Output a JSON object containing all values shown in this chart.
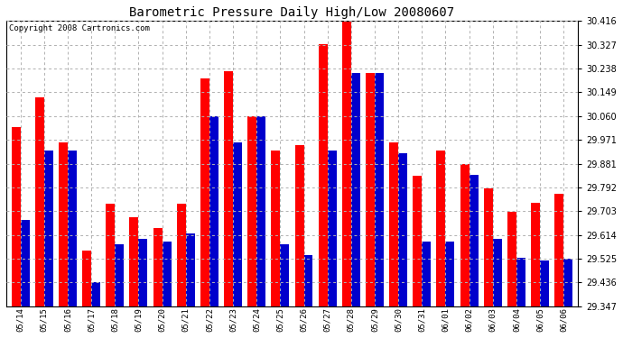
{
  "title": "Barometric Pressure Daily High/Low 20080607",
  "copyright": "Copyright 2008 Cartronics.com",
  "dates": [
    "05/14",
    "05/15",
    "05/16",
    "05/17",
    "05/18",
    "05/19",
    "05/20",
    "05/21",
    "05/22",
    "05/23",
    "05/24",
    "05/25",
    "05/26",
    "05/27",
    "05/28",
    "05/29",
    "05/30",
    "05/31",
    "06/01",
    "06/02",
    "06/03",
    "06/04",
    "06/05",
    "06/06"
  ],
  "highs": [
    30.02,
    30.13,
    29.96,
    29.555,
    29.73,
    29.68,
    29.64,
    29.73,
    30.2,
    30.23,
    30.06,
    29.93,
    29.95,
    30.33,
    30.416,
    30.22,
    29.96,
    29.835,
    29.93,
    29.88,
    29.79,
    29.7,
    29.735,
    29.77
  ],
  "lows": [
    29.67,
    29.93,
    29.93,
    29.436,
    29.58,
    29.6,
    29.59,
    29.62,
    30.06,
    29.96,
    30.06,
    29.58,
    29.54,
    29.93,
    30.22,
    30.22,
    29.92,
    29.59,
    29.59,
    29.84,
    29.6,
    29.53,
    29.52,
    29.525
  ],
  "high_color": "#ff0000",
  "low_color": "#0000cc",
  "bg_color": "#ffffff",
  "grid_color": "#b0b0b0",
  "ymin": 29.347,
  "ymax": 30.416,
  "yticks": [
    29.347,
    29.436,
    29.525,
    29.614,
    29.703,
    29.792,
    29.881,
    29.971,
    30.06,
    30.149,
    30.238,
    30.327,
    30.416
  ],
  "title_fontsize": 10,
  "copyright_fontsize": 6.5
}
